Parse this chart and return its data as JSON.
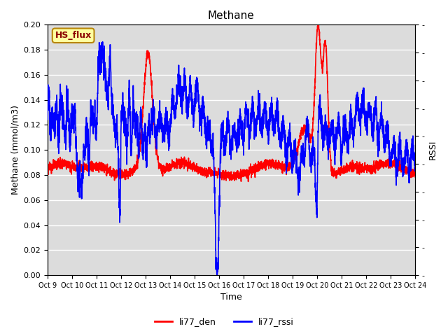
{
  "title": "Methane",
  "xlabel": "Time",
  "ylabel_left": "Methane (mmol/m3)",
  "ylabel_right": "RSSI",
  "left_ylim": [
    0.0,
    0.2
  ],
  "right_ylim": [
    0,
    90
  ],
  "left_yticks": [
    0.0,
    0.02,
    0.04,
    0.06,
    0.08,
    0.1,
    0.12,
    0.14,
    0.16,
    0.18,
    0.2
  ],
  "right_yticks": [
    0,
    10,
    20,
    30,
    40,
    50,
    60,
    70,
    80,
    90
  ],
  "xtick_labels": [
    "Oct 9",
    "Oct 10",
    "Oct 11",
    "Oct 12",
    "Oct 13",
    "Oct 14",
    "Oct 15",
    "Oct 16",
    "Oct 17",
    "Oct 18",
    "Oct 19",
    "Oct 20",
    "Oct 21",
    "Oct 22",
    "Oct 23",
    "Oct 24"
  ],
  "bg_color": "#dcdcdc",
  "grid_color": "#ffffff",
  "legend_labels": [
    "li77_den",
    "li77_rssi"
  ],
  "box_label": "HS_flux",
  "box_facecolor": "#ffffa0",
  "box_edgecolor": "#b8860b",
  "box_text_color": "#8b0000",
  "line_width": 1.2
}
